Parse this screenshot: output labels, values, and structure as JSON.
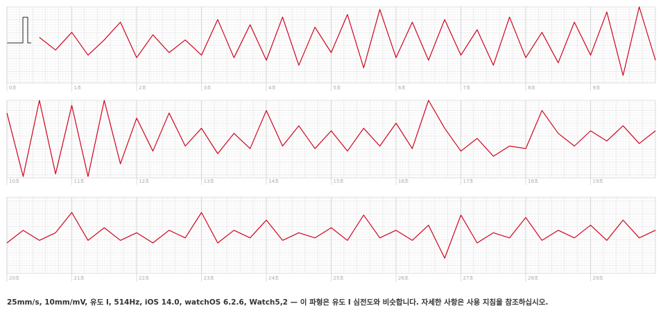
{
  "chart_data": [
    {
      "type": "line",
      "x": [
        0.5,
        0.75,
        1,
        1.25,
        1.5,
        1.75,
        2,
        2.25,
        2.5,
        2.75,
        3,
        3.25,
        3.5,
        3.75,
        4,
        4.25,
        4.5,
        4.75,
        5,
        5.25,
        5.5,
        5.75,
        6,
        6.25,
        6.5,
        6.75,
        7,
        7.25,
        7.5,
        7.75,
        8,
        8.25,
        8.5,
        8.75,
        9,
        9.25,
        9.5,
        9.75,
        10
      ],
      "series": [
        {
          "color": "#d0021b",
          "values": [
            0.3,
            -0.2,
            0.5,
            -0.4,
            0.2,
            0.9,
            -0.5,
            0.4,
            -0.3,
            0.2,
            -0.4,
            1.0,
            -0.5,
            0.8,
            -0.6,
            1.1,
            -0.8,
            0.7,
            -0.3,
            1.2,
            -0.9,
            1.4,
            -0.5,
            0.9,
            -0.6,
            1.0,
            -0.4,
            0.6,
            -0.8,
            1.1,
            -0.5,
            0.5,
            -0.7,
            0.9,
            -0.4,
            1.3,
            -1.2,
            1.5,
            -0.6
          ]
        }
      ],
      "xlim": [
        0,
        10
      ],
      "ylim": [
        -1.5,
        1.5
      ],
      "xticks": [
        {
          "value": 0,
          "label": "0초"
        },
        {
          "value": 1,
          "label": "1초"
        },
        {
          "value": 2,
          "label": "2초"
        },
        {
          "value": 3,
          "label": "3초"
        },
        {
          "value": 4,
          "label": "4초"
        },
        {
          "value": 5,
          "label": "5초"
        },
        {
          "value": 6,
          "label": "6초"
        },
        {
          "value": 7,
          "label": "7초"
        },
        {
          "value": 8,
          "label": "8초"
        },
        {
          "value": 9,
          "label": "9초"
        }
      ]
    },
    {
      "type": "line",
      "x": [
        10,
        10.25,
        10.5,
        10.75,
        11,
        11.25,
        11.5,
        11.75,
        12,
        12.25,
        12.5,
        12.75,
        13,
        13.25,
        13.5,
        13.75,
        14,
        14.25,
        14.5,
        14.75,
        15,
        15.25,
        15.5,
        15.75,
        16,
        16.25,
        16.5,
        16.75,
        17,
        17.25,
        17.5,
        17.75,
        18,
        18.25,
        18.5,
        18.75,
        19,
        19.25,
        19.5,
        19.75,
        20
      ],
      "series": [
        {
          "color": "#d0021b",
          "values": [
            1.0,
            -1.5,
            1.5,
            -1.4,
            1.3,
            -1.5,
            1.5,
            -1.0,
            0.8,
            -0.5,
            1.0,
            -0.3,
            0.4,
            -0.6,
            0.2,
            -0.4,
            1.1,
            -0.3,
            0.5,
            -0.4,
            0.3,
            -0.5,
            0.4,
            -0.3,
            0.6,
            -0.4,
            1.5,
            0.4,
            -0.5,
            0.0,
            -0.7,
            -0.3,
            -0.4,
            1.1,
            0.2,
            -0.3,
            0.3,
            -0.1,
            0.5,
            -0.2,
            0.3
          ]
        }
      ],
      "xlim": [
        10,
        20
      ],
      "ylim": [
        -1.5,
        1.5
      ],
      "xticks": [
        {
          "value": 10,
          "label": "10초"
        },
        {
          "value": 11,
          "label": "11초"
        },
        {
          "value": 12,
          "label": "12초"
        },
        {
          "value": 13,
          "label": "13초"
        },
        {
          "value": 14,
          "label": "14초"
        },
        {
          "value": 15,
          "label": "15초"
        },
        {
          "value": 16,
          "label": "16초"
        },
        {
          "value": 17,
          "label": "17초"
        },
        {
          "value": 18,
          "label": "18초"
        },
        {
          "value": 19,
          "label": "19초"
        }
      ]
    },
    {
      "type": "line",
      "x": [
        20,
        20.25,
        20.5,
        20.75,
        21,
        21.25,
        21.5,
        21.75,
        22,
        22.25,
        22.5,
        22.75,
        23,
        23.25,
        23.5,
        23.75,
        24,
        24.25,
        24.5,
        24.75,
        25,
        25.25,
        25.5,
        25.75,
        26,
        26.25,
        26.5,
        26.75,
        27,
        27.25,
        27.5,
        27.75,
        28,
        28.25,
        28.5,
        28.75,
        29,
        29.25,
        29.5,
        29.75,
        30
      ],
      "series": [
        {
          "color": "#d0021b",
          "values": [
            -0.3,
            0.2,
            -0.2,
            0.1,
            0.9,
            -0.2,
            0.3,
            -0.2,
            0.1,
            -0.3,
            0.2,
            -0.1,
            0.9,
            -0.3,
            0.2,
            -0.1,
            0.6,
            -0.2,
            0.1,
            -0.1,
            0.3,
            -0.2,
            0.8,
            -0.1,
            0.2,
            -0.2,
            0.4,
            -0.9,
            0.8,
            -0.3,
            0.1,
            -0.1,
            0.7,
            -0.2,
            0.2,
            -0.1,
            0.4,
            -0.2,
            0.6,
            -0.1,
            0.2
          ]
        }
      ],
      "xlim": [
        20,
        30
      ],
      "ylim": [
        -1.5,
        1.5
      ],
      "xticks": [
        {
          "value": 20,
          "label": "20초"
        },
        {
          "value": 21,
          "label": "21초"
        },
        {
          "value": 22,
          "label": "22초"
        },
        {
          "value": 23,
          "label": "23초"
        },
        {
          "value": 24,
          "label": "24초"
        },
        {
          "value": 25,
          "label": "25초"
        },
        {
          "value": 26,
          "label": "26초"
        },
        {
          "value": 27,
          "label": "27초"
        },
        {
          "value": 28,
          "label": "28초"
        },
        {
          "value": 29,
          "label": "29초"
        }
      ]
    }
  ],
  "footnote": "25mm/s, 10mm/mV, 유도 I, 514Hz, iOS 14.0, watchOS 6.2.6, Watch5,2 — 이 파형은 유도 I 심전도와 비슷합니다. 자세한 사항은 사용 지침을 참조하십시오."
}
